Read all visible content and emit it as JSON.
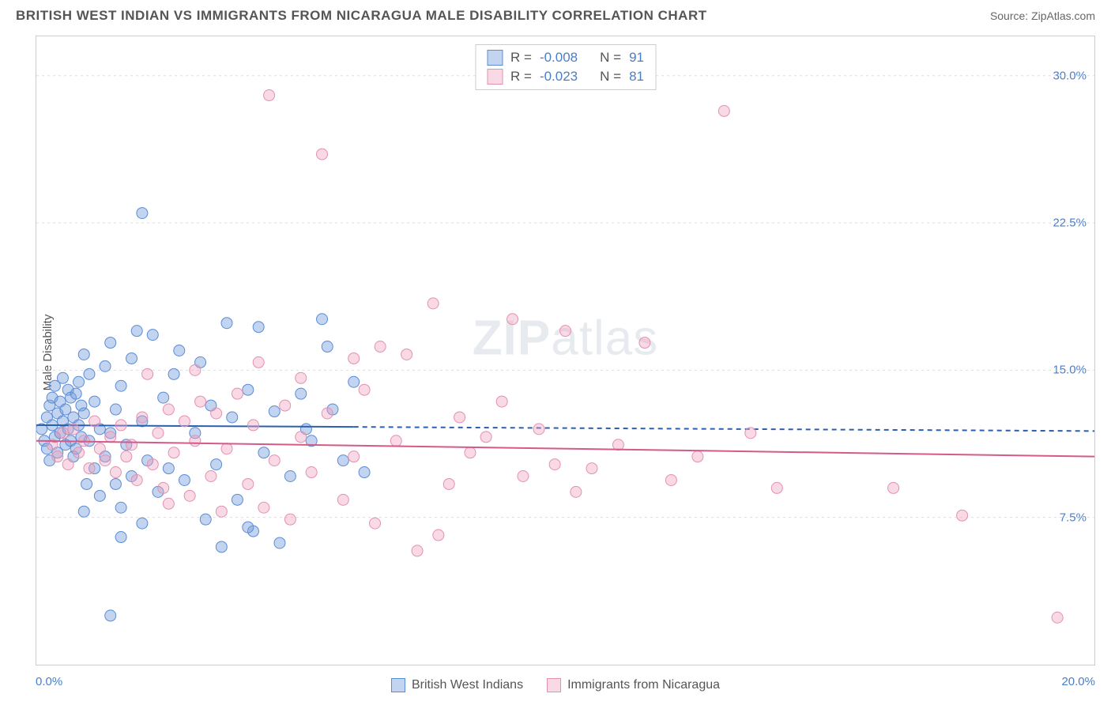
{
  "header": {
    "title": "BRITISH WEST INDIAN VS IMMIGRANTS FROM NICARAGUA MALE DISABILITY CORRELATION CHART",
    "source_label": "Source: ",
    "source_value": "ZipAtlas.com"
  },
  "watermark": {
    "part1": "ZIP",
    "part2": "atlas"
  },
  "chart": {
    "type": "scatter",
    "y_axis_label": "Male Disability",
    "background_color": "#ffffff",
    "grid_color": "#dddddd",
    "border_color": "#cccccc",
    "x": {
      "min": 0.0,
      "max": 20.0,
      "start_label": "0.0%",
      "end_label": "20.0%",
      "tick_positions": [
        0,
        2,
        4,
        6,
        8,
        10,
        12,
        14,
        16,
        18,
        20
      ]
    },
    "y": {
      "min": 0.0,
      "max": 32.0,
      "ticks": [
        {
          "v": 7.5,
          "label": "7.5%"
        },
        {
          "v": 15.0,
          "label": "15.0%"
        },
        {
          "v": 22.5,
          "label": "22.5%"
        },
        {
          "v": 30.0,
          "label": "30.0%"
        }
      ]
    },
    "series": [
      {
        "id": "bwi",
        "name": "British West Indians",
        "fill": "rgba(120,160,220,0.45)",
        "stroke": "#5b8cd6",
        "trend_color": "#2d5fb0",
        "trend_solid_to_x": 6.0,
        "stats": {
          "R": "-0.008",
          "N": "91"
        },
        "trend": {
          "y_at_x0": 12.2,
          "y_at_x20": 11.9
        },
        "points": [
          [
            0.1,
            12.0
          ],
          [
            0.15,
            11.4
          ],
          [
            0.2,
            12.6
          ],
          [
            0.2,
            11.0
          ],
          [
            0.25,
            13.2
          ],
          [
            0.25,
            10.4
          ],
          [
            0.3,
            12.2
          ],
          [
            0.3,
            13.6
          ],
          [
            0.35,
            11.6
          ],
          [
            0.35,
            14.2
          ],
          [
            0.4,
            12.8
          ],
          [
            0.4,
            10.8
          ],
          [
            0.45,
            13.4
          ],
          [
            0.45,
            11.8
          ],
          [
            0.5,
            14.6
          ],
          [
            0.5,
            12.4
          ],
          [
            0.55,
            11.2
          ],
          [
            0.55,
            13.0
          ],
          [
            0.6,
            12.0
          ],
          [
            0.6,
            14.0
          ],
          [
            0.65,
            11.4
          ],
          [
            0.65,
            13.6
          ],
          [
            0.7,
            12.6
          ],
          [
            0.7,
            10.6
          ],
          [
            0.75,
            13.8
          ],
          [
            0.75,
            11.0
          ],
          [
            0.8,
            12.2
          ],
          [
            0.8,
            14.4
          ],
          [
            0.85,
            11.6
          ],
          [
            0.85,
            13.2
          ],
          [
            0.9,
            15.8
          ],
          [
            0.9,
            12.8
          ],
          [
            0.95,
            9.2
          ],
          [
            1.0,
            14.8
          ],
          [
            1.0,
            11.4
          ],
          [
            1.1,
            10.0
          ],
          [
            1.1,
            13.4
          ],
          [
            1.2,
            8.6
          ],
          [
            1.2,
            12.0
          ],
          [
            1.3,
            15.2
          ],
          [
            1.3,
            10.6
          ],
          [
            1.4,
            16.4
          ],
          [
            1.4,
            11.8
          ],
          [
            1.5,
            9.2
          ],
          [
            1.5,
            13.0
          ],
          [
            1.6,
            8.0
          ],
          [
            1.6,
            14.2
          ],
          [
            1.7,
            11.2
          ],
          [
            1.8,
            15.6
          ],
          [
            1.8,
            9.6
          ],
          [
            1.9,
            17.0
          ],
          [
            2.0,
            23.0
          ],
          [
            2.0,
            12.4
          ],
          [
            2.1,
            10.4
          ],
          [
            2.2,
            16.8
          ],
          [
            2.3,
            8.8
          ],
          [
            2.4,
            13.6
          ],
          [
            2.5,
            10.0
          ],
          [
            2.6,
            14.8
          ],
          [
            2.7,
            16.0
          ],
          [
            2.8,
            9.4
          ],
          [
            3.0,
            11.8
          ],
          [
            3.1,
            15.4
          ],
          [
            3.2,
            7.4
          ],
          [
            3.3,
            13.2
          ],
          [
            3.4,
            10.2
          ],
          [
            3.6,
            17.4
          ],
          [
            3.7,
            12.6
          ],
          [
            3.8,
            8.4
          ],
          [
            4.0,
            14.0
          ],
          [
            4.1,
            6.8
          ],
          [
            4.2,
            17.2
          ],
          [
            4.3,
            10.8
          ],
          [
            4.5,
            12.9
          ],
          [
            4.6,
            6.2
          ],
          [
            4.8,
            9.6
          ],
          [
            5.0,
            13.8
          ],
          [
            5.1,
            12.0
          ],
          [
            5.2,
            11.4
          ],
          [
            5.4,
            17.6
          ],
          [
            5.5,
            16.2
          ],
          [
            5.6,
            13.0
          ],
          [
            5.8,
            10.4
          ],
          [
            6.0,
            14.4
          ],
          [
            6.2,
            9.8
          ],
          [
            1.4,
            2.5
          ],
          [
            0.9,
            7.8
          ],
          [
            1.6,
            6.5
          ],
          [
            2.0,
            7.2
          ],
          [
            3.5,
            6.0
          ],
          [
            4.0,
            7.0
          ]
        ]
      },
      {
        "id": "nic",
        "name": "Immigrants from Nicaragua",
        "fill": "rgba(240,160,190,0.4)",
        "stroke": "#e391b0",
        "trend_color": "#d45a8a",
        "trend_solid_to_x": 20.0,
        "stats": {
          "R": "-0.023",
          "N": "81"
        },
        "trend": {
          "y_at_x0": 11.4,
          "y_at_x20": 10.6
        },
        "points": [
          [
            0.3,
            11.2
          ],
          [
            0.4,
            10.6
          ],
          [
            0.5,
            11.8
          ],
          [
            0.6,
            10.2
          ],
          [
            0.7,
            12.0
          ],
          [
            0.8,
            10.8
          ],
          [
            0.9,
            11.4
          ],
          [
            1.0,
            10.0
          ],
          [
            1.1,
            12.4
          ],
          [
            1.2,
            11.0
          ],
          [
            1.3,
            10.4
          ],
          [
            1.4,
            11.6
          ],
          [
            1.5,
            9.8
          ],
          [
            1.6,
            12.2
          ],
          [
            1.7,
            10.6
          ],
          [
            1.8,
            11.2
          ],
          [
            1.9,
            9.4
          ],
          [
            2.0,
            12.6
          ],
          [
            2.1,
            14.8
          ],
          [
            2.2,
            10.2
          ],
          [
            2.3,
            11.8
          ],
          [
            2.4,
            9.0
          ],
          [
            2.5,
            13.0
          ],
          [
            2.6,
            10.8
          ],
          [
            2.8,
            12.4
          ],
          [
            2.9,
            8.6
          ],
          [
            3.0,
            11.4
          ],
          [
            3.1,
            13.4
          ],
          [
            3.3,
            9.6
          ],
          [
            3.4,
            12.8
          ],
          [
            3.5,
            7.8
          ],
          [
            3.6,
            11.0
          ],
          [
            3.8,
            13.8
          ],
          [
            4.0,
            9.2
          ],
          [
            4.1,
            12.2
          ],
          [
            4.3,
            8.0
          ],
          [
            4.4,
            29.0
          ],
          [
            4.5,
            10.4
          ],
          [
            4.7,
            13.2
          ],
          [
            4.8,
            7.4
          ],
          [
            5.0,
            11.6
          ],
          [
            5.2,
            9.8
          ],
          [
            5.4,
            26.0
          ],
          [
            5.5,
            12.8
          ],
          [
            5.8,
            8.4
          ],
          [
            6.0,
            10.6
          ],
          [
            6.2,
            14.0
          ],
          [
            6.4,
            7.2
          ],
          [
            6.5,
            16.2
          ],
          [
            6.8,
            11.4
          ],
          [
            7.0,
            15.8
          ],
          [
            7.2,
            5.8
          ],
          [
            7.5,
            18.4
          ],
          [
            7.6,
            6.6
          ],
          [
            7.8,
            9.2
          ],
          [
            8.0,
            12.6
          ],
          [
            8.2,
            10.8
          ],
          [
            8.5,
            11.6
          ],
          [
            8.8,
            13.4
          ],
          [
            9.0,
            17.6
          ],
          [
            9.2,
            9.6
          ],
          [
            9.5,
            12.0
          ],
          [
            9.8,
            10.2
          ],
          [
            10.0,
            17.0
          ],
          [
            10.2,
            8.8
          ],
          [
            10.5,
            10.0
          ],
          [
            11.0,
            11.2
          ],
          [
            11.5,
            16.4
          ],
          [
            12.0,
            9.4
          ],
          [
            12.5,
            10.6
          ],
          [
            13.0,
            28.2
          ],
          [
            13.5,
            11.8
          ],
          [
            14.0,
            9.0
          ],
          [
            16.2,
            9.0
          ],
          [
            17.5,
            7.6
          ],
          [
            19.3,
            2.4
          ],
          [
            6.0,
            15.6
          ],
          [
            5.0,
            14.6
          ],
          [
            4.2,
            15.4
          ],
          [
            3.0,
            15.0
          ],
          [
            2.5,
            8.2
          ]
        ]
      }
    ],
    "marker_radius": 7,
    "trend_line_width": 2
  },
  "top_legend": {
    "r_label": "R =",
    "n_label": "N ="
  },
  "bottom_legend": {
    "items": [
      {
        "series": "bwi"
      },
      {
        "series": "nic"
      }
    ]
  }
}
